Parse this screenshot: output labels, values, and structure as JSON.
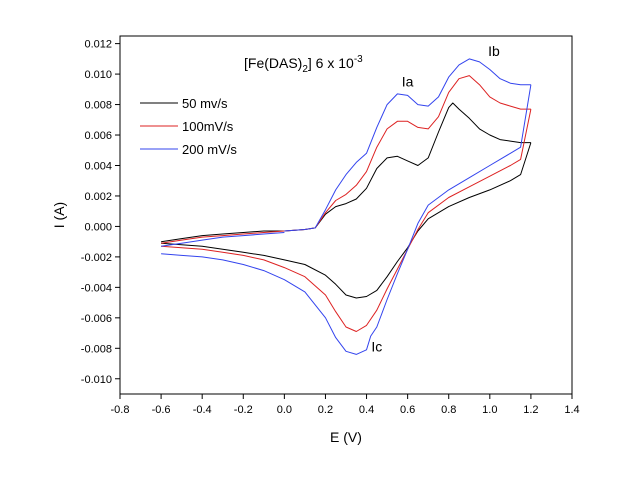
{
  "chart_data": {
    "type": "line",
    "title": {
      "prefix": "[Fe(DAS)",
      "subscript": "2",
      "middle": "] 6 x 10",
      "superscript": "-3"
    },
    "xlabel": "E (V)",
    "ylabel": "I (A)",
    "xlim": [
      -0.8,
      1.4
    ],
    "ylim": [
      -0.011,
      0.0125
    ],
    "x_ticks": [
      "-0.8",
      "-0.6",
      "-0.4",
      "-0.2",
      "0.0",
      "0.2",
      "0.4",
      "0.6",
      "0.8",
      "1.0",
      "1.2",
      "1.4"
    ],
    "y_ticks": [
      "-0.010",
      "-0.008",
      "-0.006",
      "-0.004",
      "-0.002",
      "0.000",
      "0.002",
      "0.004",
      "0.006",
      "0.008",
      "0.010",
      "0.012"
    ],
    "grid": false,
    "legend_position": "upper-left",
    "annotations": [
      {
        "text": "Ia",
        "x": 0.6,
        "y": 0.0092
      },
      {
        "text": "Ib",
        "x": 1.02,
        "y": 0.0112
      },
      {
        "text": "Ic",
        "x": 0.45,
        "y": -0.0082
      }
    ],
    "series": [
      {
        "name": "50 mv/s",
        "color": "#000000",
        "anodic": {
          "x": [
            0.0,
            0.1,
            0.15,
            0.2,
            0.25,
            0.3,
            0.35,
            0.4,
            0.45,
            0.5,
            0.55,
            0.6,
            0.65,
            0.7,
            0.75,
            0.8,
            0.82,
            0.85,
            0.9,
            0.95,
            1.0,
            1.05,
            1.1,
            1.15,
            1.2
          ],
          "y": [
            -0.0003,
            -0.0002,
            -0.0001,
            0.0008,
            0.0013,
            0.0015,
            0.0018,
            0.0025,
            0.0038,
            0.0045,
            0.0046,
            0.0043,
            0.004,
            0.0045,
            0.0062,
            0.0078,
            0.0081,
            0.0077,
            0.0071,
            0.0064,
            0.006,
            0.0057,
            0.0056,
            0.0055,
            0.0055
          ]
        },
        "cathodic": {
          "x": [
            1.2,
            1.15,
            1.1,
            1.0,
            0.9,
            0.8,
            0.7,
            0.65,
            0.6,
            0.55,
            0.5,
            0.45,
            0.4,
            0.35,
            0.3,
            0.25,
            0.2,
            0.1,
            0.0,
            -0.1,
            -0.2,
            -0.3,
            -0.4,
            -0.5,
            -0.6
          ],
          "y": [
            0.0055,
            0.0034,
            0.003,
            0.0024,
            0.0019,
            0.0013,
            0.0005,
            -0.0003,
            -0.0014,
            -0.0023,
            -0.0033,
            -0.0042,
            -0.0046,
            -0.0047,
            -0.0045,
            -0.0038,
            -0.0032,
            -0.0025,
            -0.0022,
            -0.0019,
            -0.0017,
            -0.0015,
            -0.0013,
            -0.0012,
            -0.0011
          ]
        },
        "return": {
          "x": [
            -0.6,
            -0.5,
            -0.4,
            -0.3,
            -0.2,
            -0.1,
            0.0
          ],
          "y": [
            -0.001,
            -0.0008,
            -0.0006,
            -0.0005,
            -0.0004,
            -0.0003,
            -0.0003
          ]
        }
      },
      {
        "name": "100mV/s",
        "color": "#dd2222",
        "anodic": {
          "x": [
            0.0,
            0.1,
            0.15,
            0.2,
            0.25,
            0.3,
            0.35,
            0.4,
            0.45,
            0.5,
            0.55,
            0.6,
            0.65,
            0.7,
            0.75,
            0.8,
            0.85,
            0.9,
            0.95,
            1.0,
            1.05,
            1.1,
            1.15,
            1.2
          ],
          "y": [
            -0.0003,
            -0.0002,
            -0.0001,
            0.0009,
            0.0017,
            0.0021,
            0.0027,
            0.0036,
            0.0052,
            0.0064,
            0.0069,
            0.0069,
            0.0065,
            0.0064,
            0.0072,
            0.0088,
            0.0097,
            0.0099,
            0.0093,
            0.0085,
            0.0081,
            0.0079,
            0.0077,
            0.0077
          ]
        },
        "cathodic": {
          "x": [
            1.2,
            1.15,
            1.1,
            1.0,
            0.9,
            0.8,
            0.7,
            0.65,
            0.6,
            0.55,
            0.5,
            0.45,
            0.4,
            0.35,
            0.3,
            0.25,
            0.2,
            0.1,
            0.0,
            -0.1,
            -0.2,
            -0.3,
            -0.4,
            -0.5,
            -0.6
          ],
          "y": [
            0.0077,
            0.0044,
            0.004,
            0.0033,
            0.0026,
            0.0019,
            0.0009,
            -0.0002,
            -0.0015,
            -0.0028,
            -0.0041,
            -0.0055,
            -0.0065,
            -0.0069,
            -0.0066,
            -0.0056,
            -0.0045,
            -0.0033,
            -0.0027,
            -0.0022,
            -0.0019,
            -0.0017,
            -0.0015,
            -0.0014,
            -0.0013
          ]
        },
        "return": {
          "x": [
            -0.6,
            -0.5,
            -0.4,
            -0.3,
            -0.2,
            -0.1,
            0.0
          ],
          "y": [
            -0.0011,
            -0.0009,
            -0.0007,
            -0.0006,
            -0.0005,
            -0.0004,
            -0.0003
          ]
        }
      },
      {
        "name": "200 mV/s",
        "color": "#3344ee",
        "anodic": {
          "x": [
            0.0,
            0.1,
            0.15,
            0.2,
            0.25,
            0.3,
            0.35,
            0.4,
            0.45,
            0.5,
            0.55,
            0.6,
            0.65,
            0.7,
            0.75,
            0.8,
            0.85,
            0.9,
            0.95,
            1.0,
            1.05,
            1.1,
            1.15,
            1.2
          ],
          "y": [
            -0.0003,
            -0.0002,
            -0.0001,
            0.0011,
            0.0024,
            0.0034,
            0.0042,
            0.0048,
            0.0065,
            0.008,
            0.0087,
            0.0086,
            0.008,
            0.0079,
            0.0085,
            0.0098,
            0.0106,
            0.011,
            0.0108,
            0.0103,
            0.0097,
            0.0094,
            0.0093,
            0.0093
          ]
        },
        "cathodic": {
          "x": [
            1.2,
            1.15,
            1.1,
            1.0,
            0.9,
            0.8,
            0.7,
            0.65,
            0.6,
            0.55,
            0.5,
            0.45,
            0.42,
            0.4,
            0.35,
            0.3,
            0.25,
            0.2,
            0.1,
            0.0,
            -0.1,
            -0.2,
            -0.3,
            -0.4,
            -0.5,
            -0.6
          ],
          "y": [
            0.0093,
            0.0052,
            0.0048,
            0.004,
            0.0032,
            0.0024,
            0.0014,
            0.0002,
            -0.0015,
            -0.0031,
            -0.0048,
            -0.0066,
            -0.0072,
            -0.0081,
            -0.0084,
            -0.0082,
            -0.0073,
            -0.006,
            -0.0043,
            -0.0035,
            -0.0029,
            -0.0025,
            -0.0022,
            -0.002,
            -0.0019,
            -0.0018
          ]
        },
        "return": {
          "x": [
            -0.6,
            -0.5,
            -0.4,
            -0.3,
            -0.2,
            -0.1,
            0.0
          ],
          "y": [
            -0.0013,
            -0.0011,
            -0.0009,
            -0.0007,
            -0.0006,
            -0.0005,
            -0.0004
          ]
        }
      }
    ]
  }
}
